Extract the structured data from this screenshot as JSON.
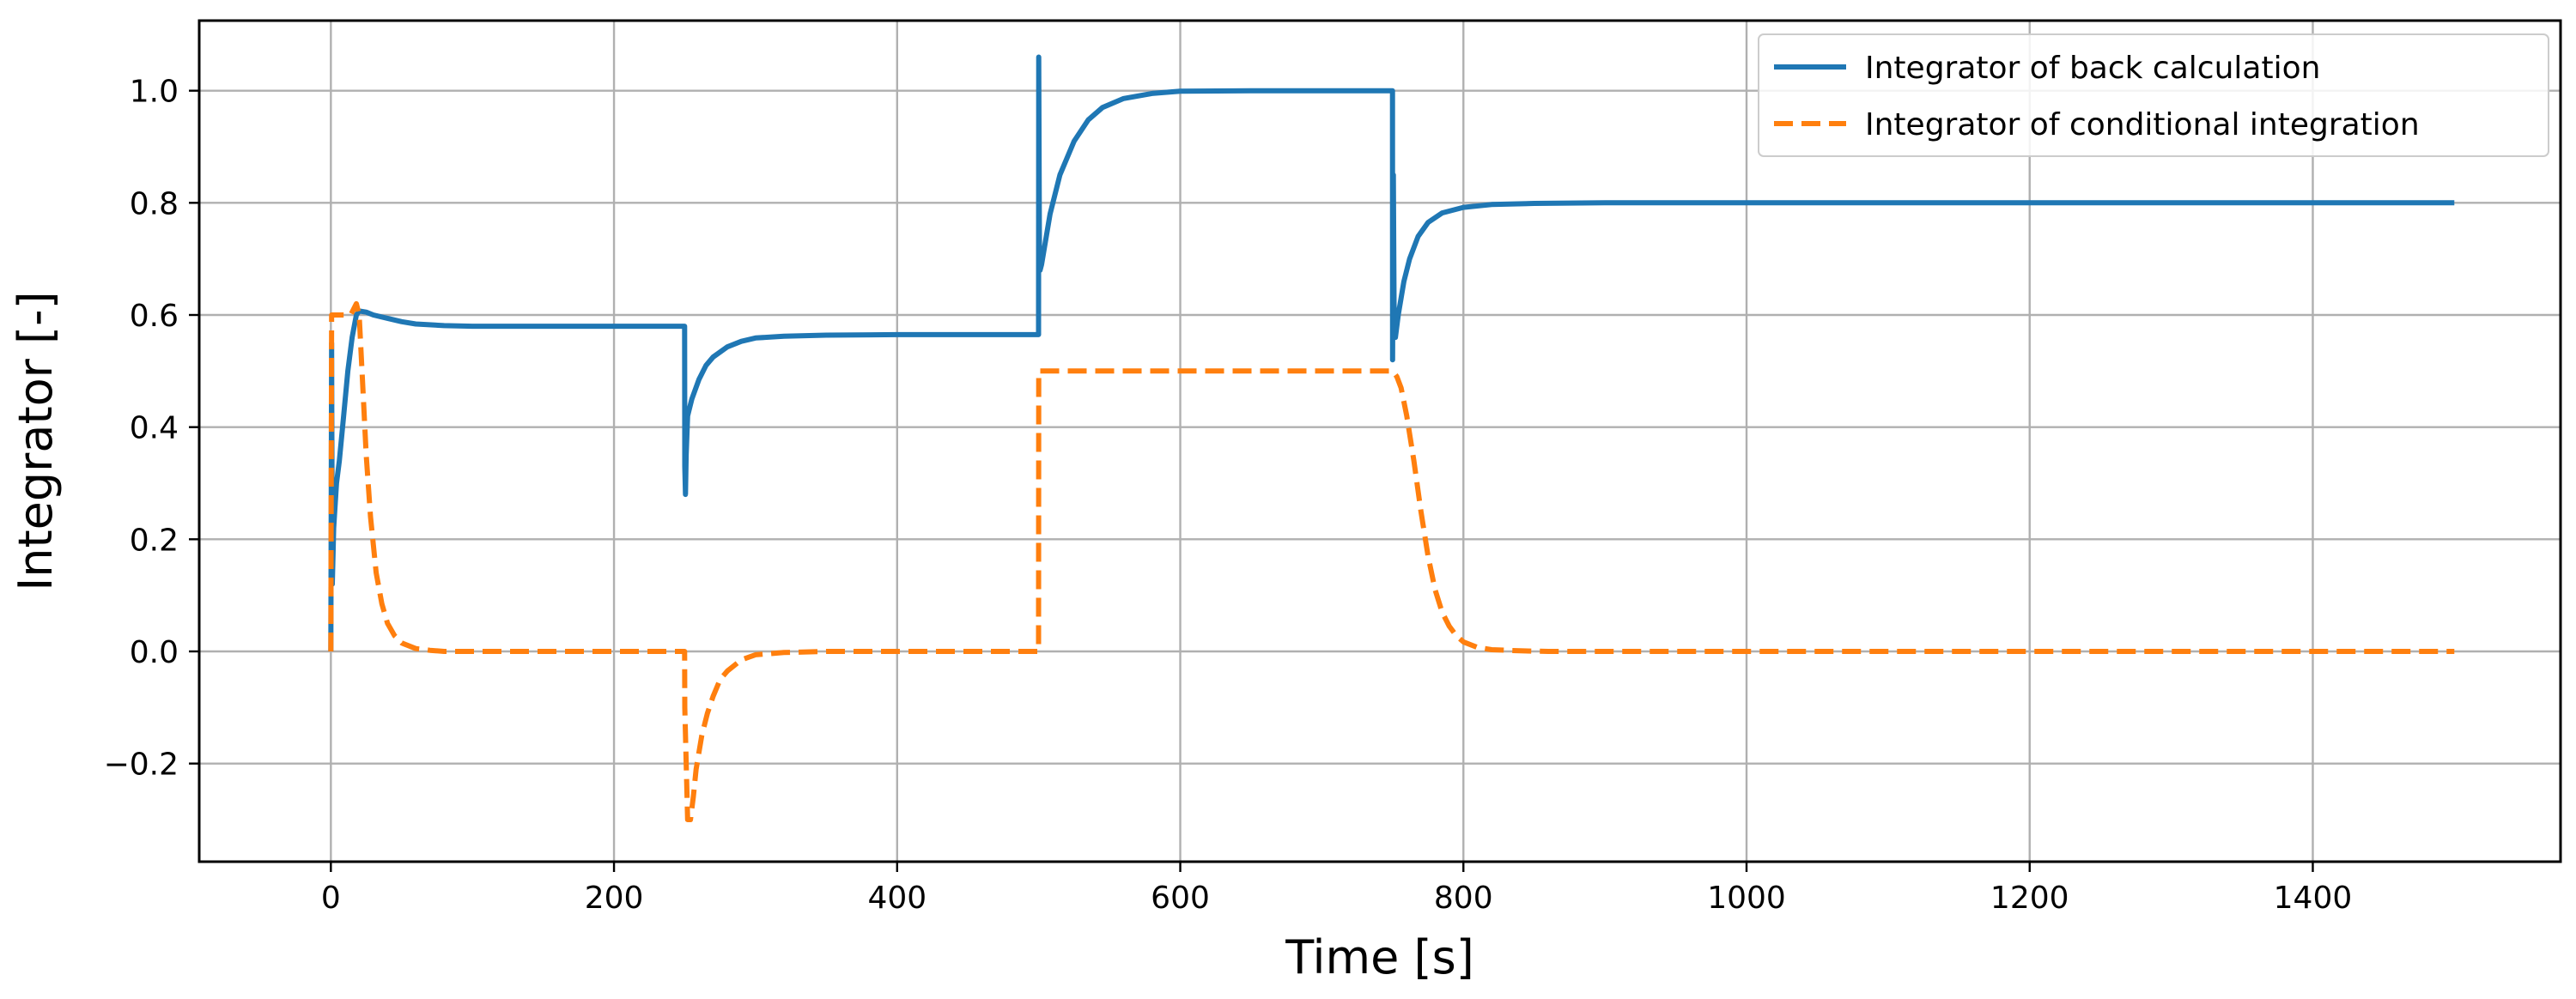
{
  "chart_data": {
    "type": "line",
    "xlabel": "Time [s]",
    "ylabel": "Integrator [-]",
    "xlim": [
      -93,
      1575
    ],
    "ylim": [
      -0.375,
      1.125
    ],
    "xticks": [
      0,
      200,
      400,
      600,
      800,
      1000,
      1200,
      1400
    ],
    "yticks": [
      -0.2,
      0.0,
      0.2,
      0.4,
      0.6,
      0.8,
      1.0
    ],
    "xtick_labels": [
      "0",
      "200",
      "400",
      "600",
      "800",
      "1000",
      "1200",
      "1400"
    ],
    "ytick_labels": [
      "−0.2",
      "0.0",
      "0.2",
      "0.4",
      "0.6",
      "0.8",
      "1.0"
    ],
    "grid": true,
    "legend_position": "top-right",
    "series": [
      {
        "name": "Integrator of back calculation",
        "color": "#1f77b4",
        "style": "solid",
        "x": [
          0,
          0.5,
          1,
          2,
          4,
          6,
          9,
          12,
          15,
          18,
          20,
          25,
          30,
          40,
          50,
          60,
          80,
          100,
          150,
          200,
          249.9,
          250,
          250.5,
          251,
          252,
          253,
          255,
          260,
          265,
          270,
          280,
          290,
          300,
          320,
          350,
          400,
          450,
          499.9,
          500,
          500.5,
          501,
          502,
          504,
          508,
          515,
          525,
          535,
          545,
          560,
          580,
          600,
          650,
          700,
          749.9,
          750,
          750.5,
          751,
          752,
          754,
          756,
          758,
          762,
          768,
          775,
          785,
          800,
          820,
          850,
          900,
          1000,
          1200,
          1500
        ],
        "y": [
          0.0,
          0.55,
          0.12,
          0.22,
          0.3,
          0.34,
          0.42,
          0.5,
          0.56,
          0.6,
          0.607,
          0.605,
          0.6,
          0.594,
          0.588,
          0.584,
          0.581,
          0.58,
          0.58,
          0.58,
          0.58,
          0.33,
          0.28,
          0.35,
          0.42,
          0.43,
          0.45,
          0.485,
          0.51,
          0.525,
          0.543,
          0.553,
          0.559,
          0.562,
          0.564,
          0.565,
          0.565,
          0.565,
          1.06,
          0.72,
          0.68,
          0.69,
          0.72,
          0.78,
          0.85,
          0.91,
          0.948,
          0.97,
          0.986,
          0.995,
          0.999,
          1.0,
          1.0,
          1.0,
          0.52,
          0.85,
          0.62,
          0.56,
          0.6,
          0.63,
          0.66,
          0.7,
          0.74,
          0.765,
          0.782,
          0.792,
          0.797,
          0.799,
          0.8,
          0.8,
          0.8,
          0.8
        ]
      },
      {
        "name": "Integrator of conditional integration",
        "color": "#ff7f0e",
        "style": "dashed",
        "x": [
          0,
          0.5,
          1,
          3,
          8,
          14,
          18,
          20,
          22,
          25,
          28,
          32,
          36,
          40,
          45,
          50,
          60,
          70,
          80,
          100,
          150,
          200,
          249.9,
          250,
          252,
          254,
          256,
          258,
          262,
          266,
          270,
          275,
          280,
          290,
          300,
          320,
          350,
          400,
          450,
          499.9,
          500,
          500.5,
          550,
          600,
          650,
          700,
          750,
          753,
          756,
          760,
          765,
          770,
          775,
          780,
          785,
          790,
          795,
          800,
          810,
          820,
          840,
          860,
          900,
          1000,
          1200,
          1500
        ],
        "y": [
          0.0,
          0.6,
          0.6,
          0.6,
          0.6,
          0.6,
          0.62,
          0.6,
          0.5,
          0.35,
          0.24,
          0.14,
          0.085,
          0.05,
          0.028,
          0.015,
          0.005,
          0.002,
          0.0,
          0.0,
          0.0,
          0.0,
          0.0,
          -0.1,
          -0.3,
          -0.3,
          -0.26,
          -0.21,
          -0.15,
          -0.11,
          -0.08,
          -0.05,
          -0.035,
          -0.015,
          -0.006,
          -0.002,
          0.0,
          0.0,
          0.0,
          0.0,
          0.5,
          0.5,
          0.5,
          0.5,
          0.5,
          0.5,
          0.5,
          0.49,
          0.47,
          0.42,
          0.34,
          0.25,
          0.17,
          0.11,
          0.07,
          0.045,
          0.028,
          0.017,
          0.007,
          0.003,
          0.001,
          0.0,
          0.0,
          0.0,
          0.0,
          0.0
        ]
      }
    ]
  }
}
